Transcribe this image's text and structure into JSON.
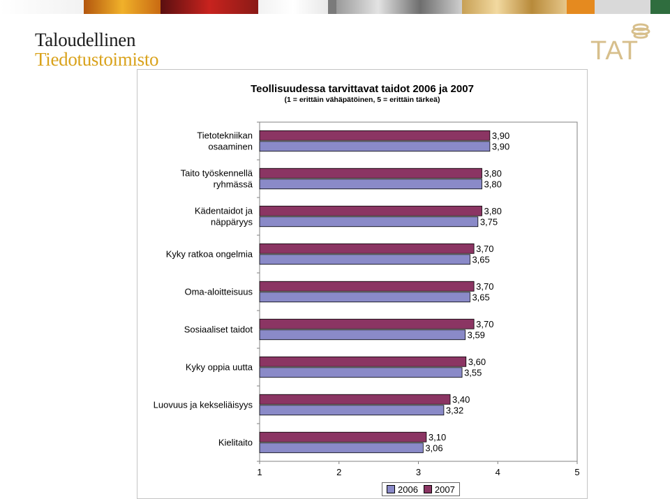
{
  "header": {
    "logo_line1": "Taloudellinen",
    "logo_line2": "Tiedotustoimisto",
    "right_logo_text": "TAT"
  },
  "colors": {
    "series_2006": "#8a8ac8",
    "series_2007": "#8b3563",
    "logo_gold": "#d9a21b",
    "logo_right": "#d7bf8c"
  },
  "chart_data": {
    "type": "bar",
    "orientation": "horizontal",
    "title": "Teollisuudessa tarvittavat taidot 2006 ja 2007",
    "subtitle": "(1 = erittäin vähäpätöinen, 5 = erittäin tärkeä)",
    "categories": [
      "Tietotekniikan osaaminen",
      "Taito työskennellä ryhmässä",
      "Kädentaidot ja näppäryys",
      "Kyky ratkoa ongelmia",
      "Oma-aloitteisuus",
      "Sosiaaliset taidot",
      "Kyky oppia uutta",
      "Luovuus ja kekseliäisyys",
      "Kielitaito"
    ],
    "category_lines": [
      [
        "Tietotekniikan",
        "osaaminen"
      ],
      [
        "Taito työskennellä",
        "ryhmässä"
      ],
      [
        "Kädentaidot ja",
        "näppäryys"
      ],
      [
        "Kyky ratkoa ongelmia"
      ],
      [
        "Oma-aloitteisuus"
      ],
      [
        "Sosiaaliset taidot"
      ],
      [
        "Kyky oppia uutta"
      ],
      [
        "Luovuus ja kekseliäisyys"
      ],
      [
        "Kielitaito"
      ]
    ],
    "series": [
      {
        "name": "2006",
        "values": [
          3.9,
          3.8,
          3.75,
          3.65,
          3.65,
          3.59,
          3.55,
          3.32,
          3.06
        ],
        "labels": [
          "3,90",
          "3,80",
          "3,75",
          "3,65",
          "3,65",
          "3,59",
          "3,55",
          "3,32",
          "3,06"
        ]
      },
      {
        "name": "2007",
        "values": [
          3.9,
          3.8,
          3.8,
          3.7,
          3.7,
          3.7,
          3.6,
          3.4,
          3.1
        ],
        "labels": [
          "3,90",
          "3,80",
          "3,80",
          "3,70",
          "3,70",
          "3,70",
          "3,60",
          "3,40",
          "3,10"
        ]
      }
    ],
    "xlim": [
      1,
      5
    ],
    "x_ticks": [
      "1",
      "2",
      "3",
      "4",
      "5"
    ],
    "grid": false,
    "legend_position": "bottom"
  }
}
